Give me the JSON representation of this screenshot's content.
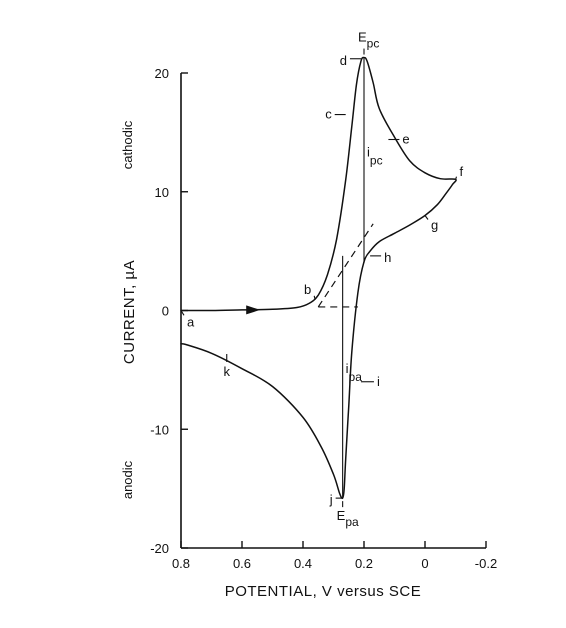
{
  "chart_data": {
    "type": "line",
    "xlabel": "POTENTIAL, V versus SCE",
    "ylabel": "CURRENT, µA",
    "xlim": [
      0.8,
      -0.2
    ],
    "ylim": [
      -20,
      20
    ],
    "x_ticks": [
      "0.8",
      "0.6",
      "0.4",
      "0.2",
      "0",
      "-0.2"
    ],
    "y_ticks": [
      "20",
      "10",
      "0",
      "-10",
      "-20"
    ],
    "y_tick_values": [
      20,
      10,
      0,
      -10,
      -20
    ],
    "x_tick_values": [
      0.8,
      0.6,
      0.4,
      0.2,
      0,
      -0.2
    ],
    "region_labels": {
      "cathodic": "cathodic",
      "anodic": "anodic"
    },
    "series": [
      {
        "points": [
          [
            0.8,
            0.0
          ],
          [
            0.7,
            0.0
          ],
          [
            0.6,
            0.05
          ],
          [
            0.5,
            0.1
          ],
          [
            0.42,
            0.25
          ],
          [
            0.38,
            0.6
          ],
          [
            0.35,
            1.3
          ],
          [
            0.32,
            3.0
          ],
          [
            0.29,
            6.0
          ],
          [
            0.26,
            11.0
          ],
          [
            0.24,
            15.5
          ],
          [
            0.225,
            19.0
          ],
          [
            0.21,
            21.0
          ],
          [
            0.2,
            21.3
          ],
          [
            0.19,
            21.0
          ],
          [
            0.17,
            19.2
          ],
          [
            0.15,
            17.0
          ],
          [
            0.1,
            14.6
          ],
          [
            0.05,
            12.6
          ],
          [
            0.0,
            11.6
          ],
          [
            -0.05,
            11.1
          ],
          [
            -0.1,
            11.05
          ],
          [
            -0.09,
            10.6
          ],
          [
            -0.07,
            9.9
          ],
          [
            -0.04,
            8.9
          ],
          [
            0.0,
            8.0
          ],
          [
            0.05,
            7.2
          ],
          [
            0.1,
            6.5
          ],
          [
            0.15,
            5.8
          ],
          [
            0.18,
            5.0
          ],
          [
            0.2,
            4.1
          ],
          [
            0.22,
            1.5
          ],
          [
            0.24,
            -3.5
          ],
          [
            0.25,
            -8.0
          ],
          [
            0.26,
            -12.5
          ],
          [
            0.265,
            -15.0
          ],
          [
            0.27,
            -15.8
          ],
          [
            0.28,
            -15.4
          ],
          [
            0.3,
            -13.8
          ],
          [
            0.34,
            -11.5
          ],
          [
            0.4,
            -9.0
          ],
          [
            0.5,
            -6.4
          ],
          [
            0.6,
            -4.9
          ],
          [
            0.7,
            -3.6
          ],
          [
            0.78,
            -2.9
          ],
          [
            0.8,
            -2.8
          ]
        ]
      }
    ],
    "baselines": [
      {
        "from": [
          0.35,
          0.3
        ],
        "to": [
          0.17,
          7.3
        ]
      },
      {
        "from": [
          0.35,
          0.3
        ],
        "to": [
          0.22,
          0.3
        ]
      }
    ],
    "current_markers": [
      {
        "label": "i",
        "sub": "pc",
        "x": 0.2,
        "from": 4.0,
        "to": 21.3
      },
      {
        "label": "i",
        "sub": "pa",
        "x": 0.27,
        "from": -15.8,
        "to": 4.6
      }
    ],
    "peak_labels": [
      {
        "label": "E",
        "sub": "pc",
        "x": 0.2,
        "y": 21.3
      },
      {
        "label": "E",
        "sub": "pa",
        "x": 0.27,
        "y": -15.8
      }
    ],
    "points": [
      {
        "id": "a",
        "x": 0.8,
        "y": 0.0
      },
      {
        "id": "b",
        "x": 0.36,
        "y": 0.9
      },
      {
        "id": "c",
        "x": 0.26,
        "y": 16.5
      },
      {
        "id": "d",
        "x": 0.21,
        "y": 21.2
      },
      {
        "id": "e",
        "x": 0.12,
        "y": 14.4
      },
      {
        "id": "f",
        "x": -0.1,
        "y": 11.0
      },
      {
        "id": "g",
        "x": 0.0,
        "y": 8.0
      },
      {
        "id": "h",
        "x": 0.18,
        "y": 4.6
      },
      {
        "id": "i",
        "x": 0.21,
        "y": -6.0
      },
      {
        "id": "j",
        "x": 0.27,
        "y": -15.8
      },
      {
        "id": "k",
        "x": 0.65,
        "y": -4.0
      }
    ]
  }
}
